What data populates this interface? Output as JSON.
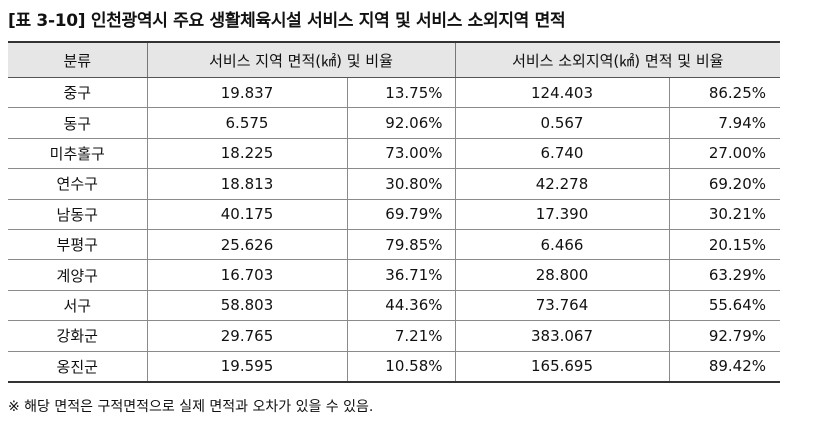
{
  "title": "[표 3-10] 인천광역시 주요 생활체육시설 서비스 지역 및 서비스 소외지역 면적",
  "headers": {
    "category": "분류",
    "service": "서비스 지역 면적(㎢) 및 비율",
    "excluded": "서비스 소외지역(㎢) 면적 및 비율"
  },
  "rows": [
    {
      "name": "중구",
      "service_area": "19.837",
      "service_pct": "13.75%",
      "excluded_area": "124.403",
      "excluded_pct": "86.25%"
    },
    {
      "name": "동구",
      "service_area": "6.575",
      "service_pct": "92.06%",
      "excluded_area": "0.567",
      "excluded_pct": "7.94%"
    },
    {
      "name": "미추홀구",
      "service_area": "18.225",
      "service_pct": "73.00%",
      "excluded_area": "6.740",
      "excluded_pct": "27.00%"
    },
    {
      "name": "연수구",
      "service_area": "18.813",
      "service_pct": "30.80%",
      "excluded_area": "42.278",
      "excluded_pct": "69.20%"
    },
    {
      "name": "남동구",
      "service_area": "40.175",
      "service_pct": "69.79%",
      "excluded_area": "17.390",
      "excluded_pct": "30.21%"
    },
    {
      "name": "부평구",
      "service_area": "25.626",
      "service_pct": "79.85%",
      "excluded_area": "6.466",
      "excluded_pct": "20.15%"
    },
    {
      "name": "계양구",
      "service_area": "16.703",
      "service_pct": "36.71%",
      "excluded_area": "28.800",
      "excluded_pct": "63.29%"
    },
    {
      "name": "서구",
      "service_area": "58.803",
      "service_pct": "44.36%",
      "excluded_area": "73.764",
      "excluded_pct": "55.64%"
    },
    {
      "name": "강화군",
      "service_area": "29.765",
      "service_pct": "7.21%",
      "excluded_area": "383.067",
      "excluded_pct": "92.79%"
    },
    {
      "name": "옹진군",
      "service_area": "19.595",
      "service_pct": "10.58%",
      "excluded_area": "165.695",
      "excluded_pct": "89.42%"
    }
  ],
  "note": "※ 해당 면적은 구적면적으로 실제 면적과 오차가 있을 수 있음."
}
